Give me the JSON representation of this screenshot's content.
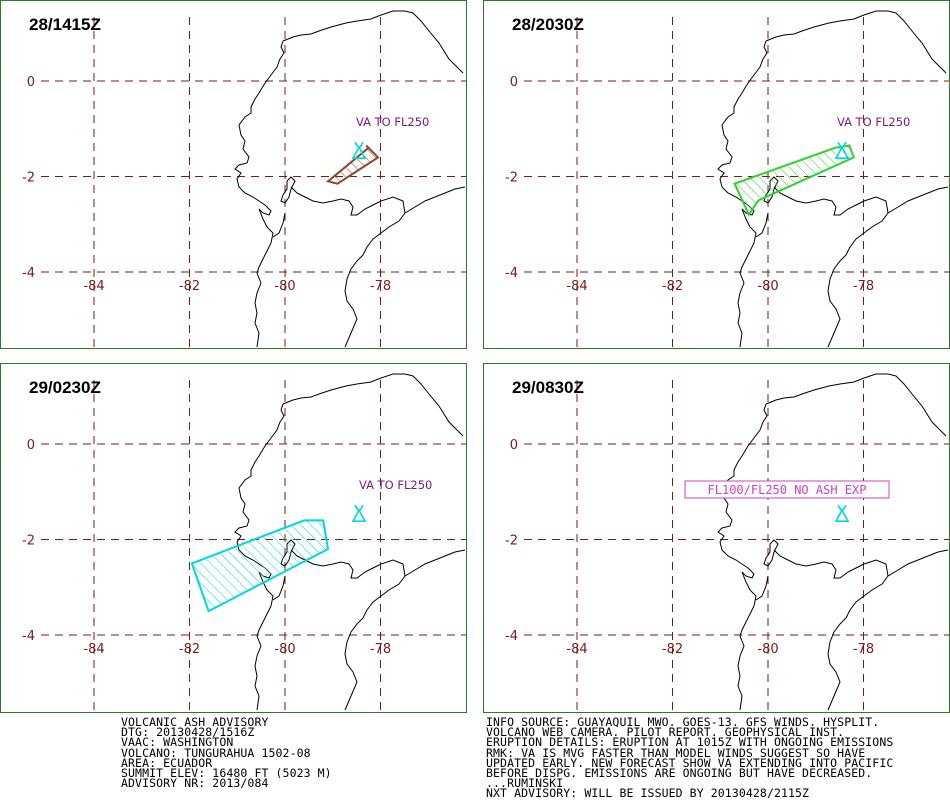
{
  "colors": {
    "grid": "#7a1a1a",
    "border": "#2a7a2a",
    "coast": "#000000",
    "volcano": "#00d8e0",
    "label_purple": "#7a1a7a",
    "box_magenta": "#d040c0",
    "ash_t0": "#8b4a2a",
    "ash_t1": "#30d030",
    "ash_t2": "#00d8e0"
  },
  "lat_labels": [
    "0",
    "-2",
    "-4"
  ],
  "lon_labels": [
    "-84",
    "-82",
    "-80",
    "-78"
  ],
  "panels": [
    {
      "time": "28/1415Z",
      "label": "VA TO FL250",
      "label_type": "text",
      "ash_color_key": "ash_t0",
      "ash_polygon": [
        [
          -79.1,
          -2.1
        ],
        [
          -78.25,
          -1.4
        ],
        [
          -78.3,
          -1.35
        ],
        [
          -78.05,
          -1.6
        ],
        [
          -78.9,
          -2.15
        ]
      ]
    },
    {
      "time": "28/2030Z",
      "label": "VA TO FL250",
      "label_type": "text",
      "ash_color_key": "ash_t1",
      "ash_polygon": [
        [
          -80.7,
          -2.15
        ],
        [
          -78.6,
          -1.4
        ],
        [
          -78.3,
          -1.35
        ],
        [
          -78.2,
          -1.6
        ],
        [
          -80.2,
          -2.5
        ],
        [
          -80.4,
          -2.8
        ]
      ]
    },
    {
      "time": "29/0230Z",
      "label": "VA TO FL250",
      "label_type": "text",
      "ash_color_key": "ash_t2",
      "ash_polygon": [
        [
          -81.95,
          -2.5
        ],
        [
          -79.6,
          -1.6
        ],
        [
          -79.2,
          -1.6
        ],
        [
          -79.1,
          -2.2
        ],
        [
          -81.6,
          -3.5
        ]
      ]
    },
    {
      "time": "29/0830Z",
      "label": "FL100/FL250 NO ASH EXP",
      "label_type": "box",
      "ash_color_key": "",
      "ash_polygon": []
    }
  ],
  "volcano_location": [
    -78.45,
    -1.47
  ],
  "advisory_left": [
    "VOLCANIC ASH ADVISORY",
    "DTG: 20130428/1516Z",
    "VAAC: WASHINGTON",
    "VOLCANO: TUNGURAHUA 1502-08",
    "AREA: ECUADOR",
    "SUMMIT ELEV: 16480 FT (5023 M)",
    "ADVISORY NR: 2013/084"
  ],
  "advisory_right": [
    "INFO SOURCE: GUAYAQUIL MWO. GOES-13. GFS WINDS. HYSPLIT.",
    "VOLCANO WEB CAMERA. PILOT REPORT. GEOPHYSICAL INST.",
    "ERUPTION DETAILS: ERUPTION AT 1015Z WITH ONGOING EMISSIONS",
    "RMK: VA IS MVG FASTER THAN MODEL WINDS SUGGEST SO HAVE",
    "UPDATED EARLY. NEW FORECAST SHOW VA EXTENDING INTO PACIFIC",
    "BEFORE DISPG. EMISSIONS ARE ONGOING BUT HAVE DECREASED.",
    "...RUMINSKI",
    "NXT ADVISORY: WILL BE ISSUED BY 20130428/2115Z"
  ]
}
